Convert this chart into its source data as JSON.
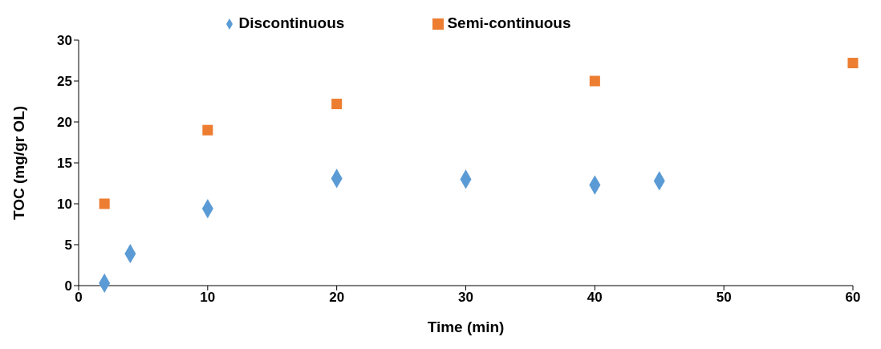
{
  "chart_data": {
    "type": "scatter",
    "xlabel": "Time (min)",
    "ylabel": "TOC (mg/gr OL)",
    "xlim": [
      0,
      60
    ],
    "xticks": [
      0,
      10,
      20,
      30,
      40,
      50,
      60
    ],
    "ylim": [
      0,
      30
    ],
    "yticks": [
      0,
      5,
      10,
      15,
      20,
      25,
      30
    ],
    "grid": false,
    "legend": "top",
    "series": [
      {
        "name": "Discontinuous",
        "color": "#5b9bd5",
        "marker": "diamond",
        "x": [
          2,
          4,
          10,
          20,
          30,
          40,
          45
        ],
        "values": [
          0.3,
          3.9,
          9.4,
          13.1,
          13.0,
          12.3,
          12.8
        ]
      },
      {
        "name": "Semi-continuous",
        "color": "#ed7d31",
        "marker": "square",
        "x": [
          2,
          10,
          20,
          40,
          60
        ],
        "values": [
          10.0,
          19.0,
          22.2,
          25.0,
          27.2
        ]
      }
    ]
  }
}
